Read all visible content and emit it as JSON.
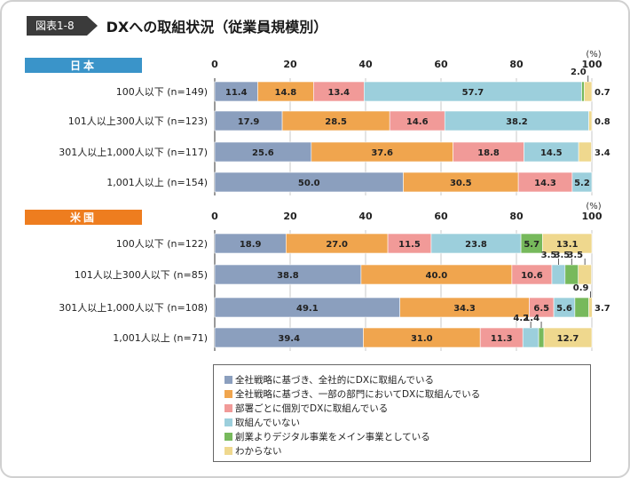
{
  "figure": {
    "label": "図表1-8",
    "title": "DXへの取組状況（従業員規模別）"
  },
  "colors": [
    "#8b9fbe",
    "#f0a54e",
    "#f19a98",
    "#9ccfdc",
    "#77b95c",
    "#efd88e"
  ],
  "legend": [
    "全社戦略に基づき、全社的にDXに取組んでいる",
    "全社戦略に基づき、一部の部門においてDXに取組んでいる",
    "部署ごとに個別でDXに取組んでいる",
    "取組んでいない",
    "創業よりデジタル事業をメイン事業としている",
    "わからない"
  ],
  "chart_data": [
    {
      "type": "bar",
      "stacked": true,
      "orientation": "horizontal",
      "title": "日本",
      "unit": "(%)",
      "xlim": [
        0,
        100
      ],
      "ticks": [
        "0",
        "20",
        "40",
        "60",
        "80",
        "100"
      ],
      "categories": [
        "100人以下 (n=149)",
        "101人以上300人以下 (n=123)",
        "301人以上1,000人以下 (n=117)",
        "1,001人以上 (n=154)"
      ],
      "series": [
        {
          "name": "全社戦略に基づき、全社的にDXに取組んでいる",
          "values": [
            11.4,
            17.9,
            25.6,
            50.0
          ],
          "labels": [
            "11.4",
            "17.9",
            "25.6",
            "50.0"
          ]
        },
        {
          "name": "全社戦略に基づき、一部の部門においてDXに取組んでいる",
          "values": [
            14.8,
            28.5,
            37.6,
            30.5
          ],
          "labels": [
            "14.8",
            "28.5",
            "37.6",
            "30.5"
          ]
        },
        {
          "name": "部署ごとに個別でDXに取組んでいる",
          "values": [
            13.4,
            14.6,
            18.8,
            14.3
          ],
          "labels": [
            "13.4",
            "14.6",
            "18.8",
            "14.3"
          ]
        },
        {
          "name": "取組んでいない",
          "values": [
            57.7,
            38.2,
            14.5,
            5.2
          ],
          "labels": [
            "57.7",
            "38.2",
            "14.5",
            "5.2"
          ]
        },
        {
          "name": "創業よりデジタル事業をメイン事業としている",
          "values": [
            0.7,
            0.0,
            0.0,
            0.0
          ],
          "labels": [
            "0.7",
            "",
            "",
            ""
          ]
        },
        {
          "name": "わからない",
          "values": [
            2.0,
            0.8,
            3.4,
            0.0
          ],
          "labels": [
            "2.0",
            "0.8",
            "3.4",
            ""
          ]
        }
      ]
    },
    {
      "type": "bar",
      "stacked": true,
      "orientation": "horizontal",
      "title": "米国",
      "unit": "(%)",
      "xlim": [
        0,
        100
      ],
      "ticks": [
        "0",
        "20",
        "40",
        "60",
        "80",
        "100"
      ],
      "categories": [
        "100人以下 (n=122)",
        "101人以上300人以下 (n=85)",
        "301人以上1,000人以下 (n=108)",
        "1,001人以上 (n=71)"
      ],
      "series": [
        {
          "name": "全社戦略に基づき、全社的にDXに取組んでいる",
          "values": [
            18.9,
            38.8,
            49.1,
            39.4
          ],
          "labels": [
            "18.9",
            "38.8",
            "49.1",
            "39.4"
          ]
        },
        {
          "name": "全社戦略に基づき、一部の部門においてDXに取組んでいる",
          "values": [
            27.0,
            40.0,
            34.3,
            31.0
          ],
          "labels": [
            "27.0",
            "40.0",
            "34.3",
            "31.0"
          ]
        },
        {
          "name": "部署ごとに個別でDXに取組んでいる",
          "values": [
            11.5,
            10.6,
            6.5,
            11.3
          ],
          "labels": [
            "11.5",
            "10.6",
            "6.5",
            "11.3"
          ]
        },
        {
          "name": "取組んでいない",
          "values": [
            23.8,
            3.5,
            5.6,
            4.2
          ],
          "labels": [
            "23.8",
            "3.5",
            "5.6",
            "4.2"
          ]
        },
        {
          "name": "創業よりデジタル事業をメイン事業としている",
          "values": [
            5.7,
            3.5,
            3.7,
            1.4
          ],
          "labels": [
            "5.7",
            "3.5",
            "3.7",
            "1.4"
          ]
        },
        {
          "name": "わからない",
          "values": [
            13.1,
            3.5,
            0.9,
            12.7
          ],
          "labels": [
            "13.1",
            "3.5",
            "0.9",
            "12.7"
          ]
        }
      ]
    }
  ]
}
